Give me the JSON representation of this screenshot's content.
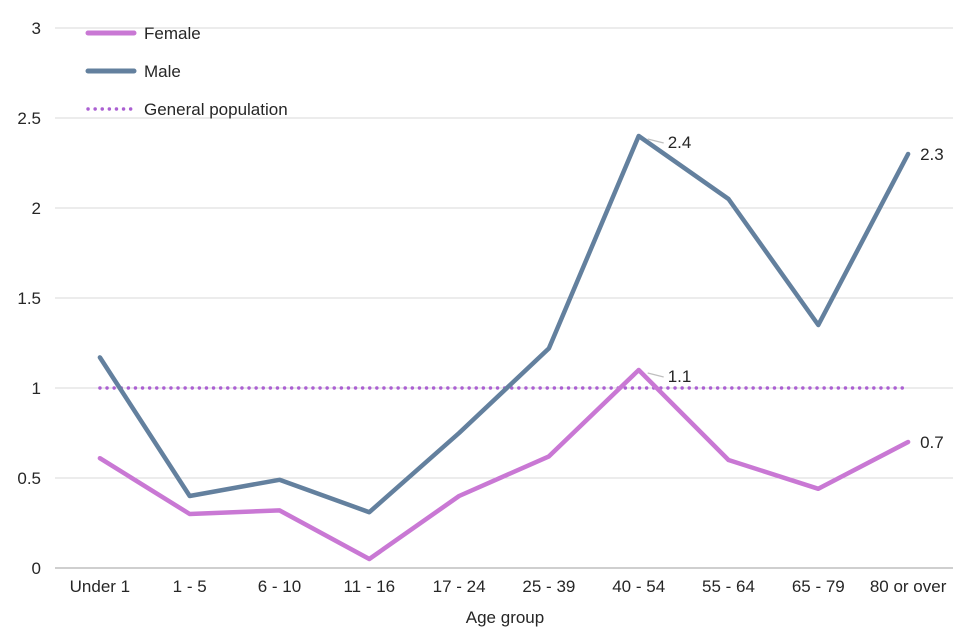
{
  "chart_data": {
    "type": "line",
    "title": "",
    "xlabel": "Age group",
    "ylabel": "",
    "ylim": [
      0,
      3
    ],
    "yticks": [
      0,
      0.5,
      1,
      1.5,
      2,
      2.5,
      3
    ],
    "ytick_labels": [
      "0",
      "0.5",
      "1",
      "1.5",
      "2",
      "2.5",
      "3"
    ],
    "grid": true,
    "legend_position": "top-left",
    "categories": [
      "Under 1",
      "1 - 5",
      "6 - 10",
      "11 - 16",
      "17 - 24",
      "25 - 39",
      "40 - 54",
      "55 - 64",
      "65 - 79",
      "80 or over"
    ],
    "series": [
      {
        "name": "Female",
        "color": "#c978d4",
        "style": "solid",
        "values": [
          0.61,
          0.3,
          0.32,
          0.05,
          0.4,
          0.62,
          1.1,
          0.6,
          0.44,
          0.7
        ]
      },
      {
        "name": "Male",
        "color": "#63809e",
        "style": "solid",
        "values": [
          1.17,
          0.4,
          0.49,
          0.31,
          0.75,
          1.22,
          2.4,
          2.05,
          1.35,
          2.3
        ]
      },
      {
        "name": "General population",
        "color": "#ab60d2",
        "style": "dotted",
        "values": [
          1,
          1,
          1,
          1,
          1,
          1,
          1,
          1,
          1,
          1
        ]
      }
    ],
    "annotations": [
      {
        "series": "Male",
        "index": 6,
        "text": "2.4",
        "leader": true
      },
      {
        "series": "Male",
        "index": 9,
        "text": "2.3",
        "leader": false
      },
      {
        "series": "Female",
        "index": 6,
        "text": "1.1",
        "leader": true
      },
      {
        "series": "Female",
        "index": 9,
        "text": "0.7",
        "leader": false
      }
    ],
    "colors": {
      "gridline": "#d9d9d9",
      "axis_line": "#bfbfbf",
      "leader_line": "#bfbfbf",
      "text": "#262626"
    }
  }
}
